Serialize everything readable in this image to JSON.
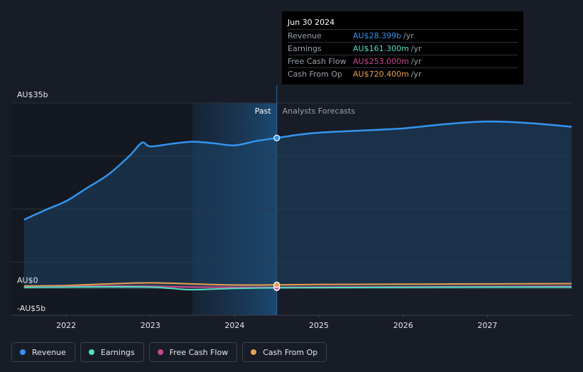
{
  "chart_data": {
    "type": "line",
    "currency_unit": "AU$ billions",
    "y_tick_labels": [
      "AU$35b",
      "AU$0",
      "-AU$5b"
    ],
    "ylim": [
      -5,
      35
    ],
    "x_tick_labels": [
      "2022",
      "2023",
      "2024",
      "2025",
      "2026",
      "2027"
    ],
    "x_ticks": [
      2022,
      2023,
      2024,
      2025,
      2026,
      2027
    ],
    "xlim": [
      2021.35,
      2028.0
    ],
    "past_start": 2023.5,
    "divider_x": 2024.5,
    "past_label": "Past",
    "forecast_label": "Analysts Forecasts",
    "grid": true,
    "legend_position": "bottom-left",
    "series": [
      {
        "name": "Revenue",
        "color": "#3395f0",
        "x": [
          2021.5,
          2021.75,
          2022.0,
          2022.25,
          2022.5,
          2022.75,
          2022.9,
          2023.0,
          2023.25,
          2023.5,
          2023.75,
          2024.0,
          2024.25,
          2024.5,
          2024.75,
          2025.0,
          2025.5,
          2026.0,
          2026.5,
          2027.0,
          2027.5,
          2028.0
        ],
        "y": [
          13.0,
          14.8,
          16.5,
          19.0,
          21.5,
          25.0,
          27.5,
          26.8,
          27.3,
          27.7,
          27.4,
          27.0,
          27.8,
          28.399,
          29.0,
          29.4,
          29.8,
          30.2,
          31.0,
          31.5,
          31.2,
          30.5
        ]
      },
      {
        "name": "Earnings",
        "color": "#4ee0c2",
        "x": [
          2021.5,
          2022.0,
          2022.5,
          2023.0,
          2023.25,
          2023.5,
          2024.0,
          2024.5,
          2025.0,
          2026.0,
          2027.0,
          2028.0
        ],
        "y": [
          0.25,
          0.3,
          0.35,
          0.3,
          0.05,
          -0.2,
          0.05,
          0.161,
          0.2,
          0.25,
          0.3,
          0.3
        ]
      },
      {
        "name": "Free Cash Flow",
        "color": "#c9478f",
        "x": [
          2021.5,
          2022.0,
          2022.5,
          2023.0,
          2023.5,
          2024.0,
          2024.5,
          2025.0,
          2026.0,
          2027.0,
          2028.0
        ],
        "y": [
          0.3,
          0.4,
          0.5,
          0.45,
          0.3,
          0.25,
          0.253,
          0.3,
          0.35,
          0.4,
          0.45
        ]
      },
      {
        "name": "Cash From Op",
        "color": "#e9a050",
        "x": [
          2021.5,
          2022.0,
          2022.5,
          2023.0,
          2023.5,
          2024.0,
          2024.5,
          2025.0,
          2026.0,
          2027.0,
          2028.0
        ],
        "y": [
          0.5,
          0.6,
          0.9,
          1.1,
          0.9,
          0.7,
          0.72,
          0.8,
          0.85,
          0.9,
          0.95
        ]
      }
    ]
  },
  "tooltip": {
    "date": "Jun 30 2024",
    "rows": [
      {
        "label": "Revenue",
        "value": "AU$28.399b",
        "unit": "/yr",
        "color": "#3395f0"
      },
      {
        "label": "Earnings",
        "value": "AU$161.300m",
        "unit": "/yr",
        "color": "#4ee0c2"
      },
      {
        "label": "Free Cash Flow",
        "value": "AU$253.000m",
        "unit": "/yr",
        "color": "#c9478f"
      },
      {
        "label": "Cash From Op",
        "value": "AU$720.400m",
        "unit": "/yr",
        "color": "#e9a050"
      }
    ]
  },
  "legend": [
    {
      "label": "Revenue",
      "color": "#3395f0"
    },
    {
      "label": "Earnings",
      "color": "#4ee0c2"
    },
    {
      "label": "Free Cash Flow",
      "color": "#c9478f"
    },
    {
      "label": "Cash From Op",
      "color": "#e9a050"
    }
  ]
}
